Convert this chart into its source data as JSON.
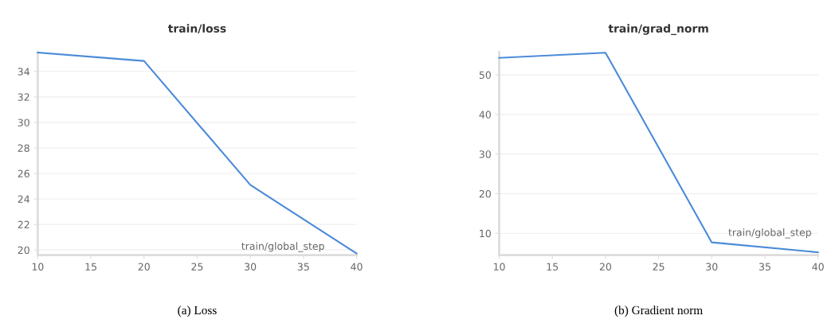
{
  "chart_data": [
    {
      "type": "line",
      "title": "train/loss",
      "xlabel": "train/global_step",
      "annotations": [
        "(a) Loss"
      ],
      "x": [
        10,
        20,
        30,
        40
      ],
      "series": [
        {
          "color": "#4a8ad8",
          "values": [
            35.48,
            34.82,
            25.1,
            19.72
          ]
        }
      ],
      "xlim": [
        10,
        40
      ],
      "xticks": [
        10,
        15,
        20,
        25,
        30,
        35,
        40
      ],
      "ylim": [
        19.6,
        35.5
      ],
      "yticks": [
        20,
        22,
        24,
        26,
        28,
        30,
        32,
        34
      ],
      "grid": "y"
    },
    {
      "type": "line",
      "title": "train/grad_norm",
      "xlabel": "train/global_step",
      "annotations": [
        "(b) Gradient norm"
      ],
      "x": [
        10,
        20,
        30,
        40
      ],
      "series": [
        {
          "color": "#4a8ad8",
          "values": [
            54.3,
            55.6,
            7.7,
            5.2
          ]
        }
      ],
      "xlim": [
        10,
        40
      ],
      "xticks": [
        10,
        15,
        20,
        25,
        30,
        35,
        40
      ],
      "ylim": [
        4.5,
        55.7
      ],
      "yticks": [
        10,
        20,
        30,
        40,
        50
      ],
      "grid": "y"
    }
  ]
}
